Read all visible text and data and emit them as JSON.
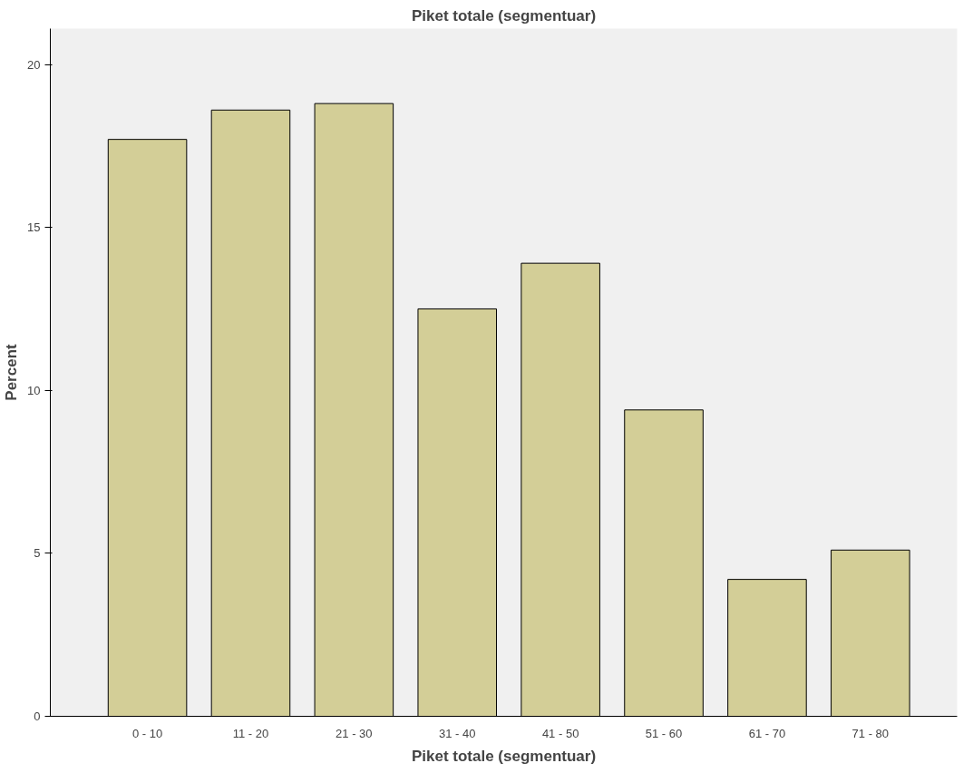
{
  "chart_data": {
    "type": "bar",
    "title": "Piket totale (segmentuar)",
    "xlabel": "Piket totale (segmentuar)",
    "ylabel": "Percent",
    "categories": [
      "0 - 10",
      "11 - 20",
      "21 - 30",
      "31 - 40",
      "41 - 50",
      "51 - 60",
      "61 - 70",
      "71 - 80"
    ],
    "values": [
      17.7,
      18.6,
      18.8,
      12.5,
      13.9,
      9.4,
      4.2,
      5.1
    ],
    "color": "#d3ce97",
    "ylim": [
      0,
      21.1
    ],
    "yticks": [
      0,
      5,
      10,
      15,
      20
    ],
    "grid": false
  }
}
